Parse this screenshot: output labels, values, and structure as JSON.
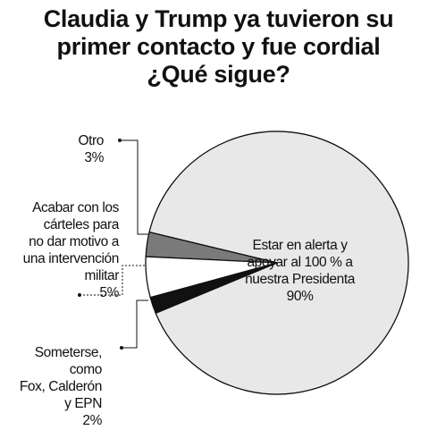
{
  "title_lines": [
    "Claudia y Trump ya tuvieron su",
    "primer contacto y fue cordial",
    "¿Qué sigue?"
  ],
  "colors": {
    "main": "#e8e8e8",
    "otro": "#7a7a7a",
    "acabar": "#ffffff",
    "someterse": "#111111",
    "stroke": "#111111"
  },
  "chart_data": {
    "type": "pie",
    "title": "Claudia y Trump ya tuvieron su primer contacto y fue cordial ¿Qué sigue?",
    "slices": [
      {
        "key": "main",
        "label_lines": [
          "Estar en alerta y",
          "apoyar al 100 % a",
          "nuestra Presidenta"
        ],
        "value_label": "90%",
        "value": 90
      },
      {
        "key": "otro",
        "label_lines": [
          "Otro"
        ],
        "value_label": "3%",
        "value": 3
      },
      {
        "key": "acabar",
        "label_lines": [
          "Acabar con los",
          "cárteles para",
          "no dar motivo a",
          "una intervención",
          "militar"
        ],
        "value_label": "5%",
        "value": 5
      },
      {
        "key": "someterse",
        "label_lines": [
          "Someterse, como",
          "Fox, Calderón",
          "y EPN"
        ],
        "value_label": "2%",
        "value": 2
      }
    ]
  }
}
